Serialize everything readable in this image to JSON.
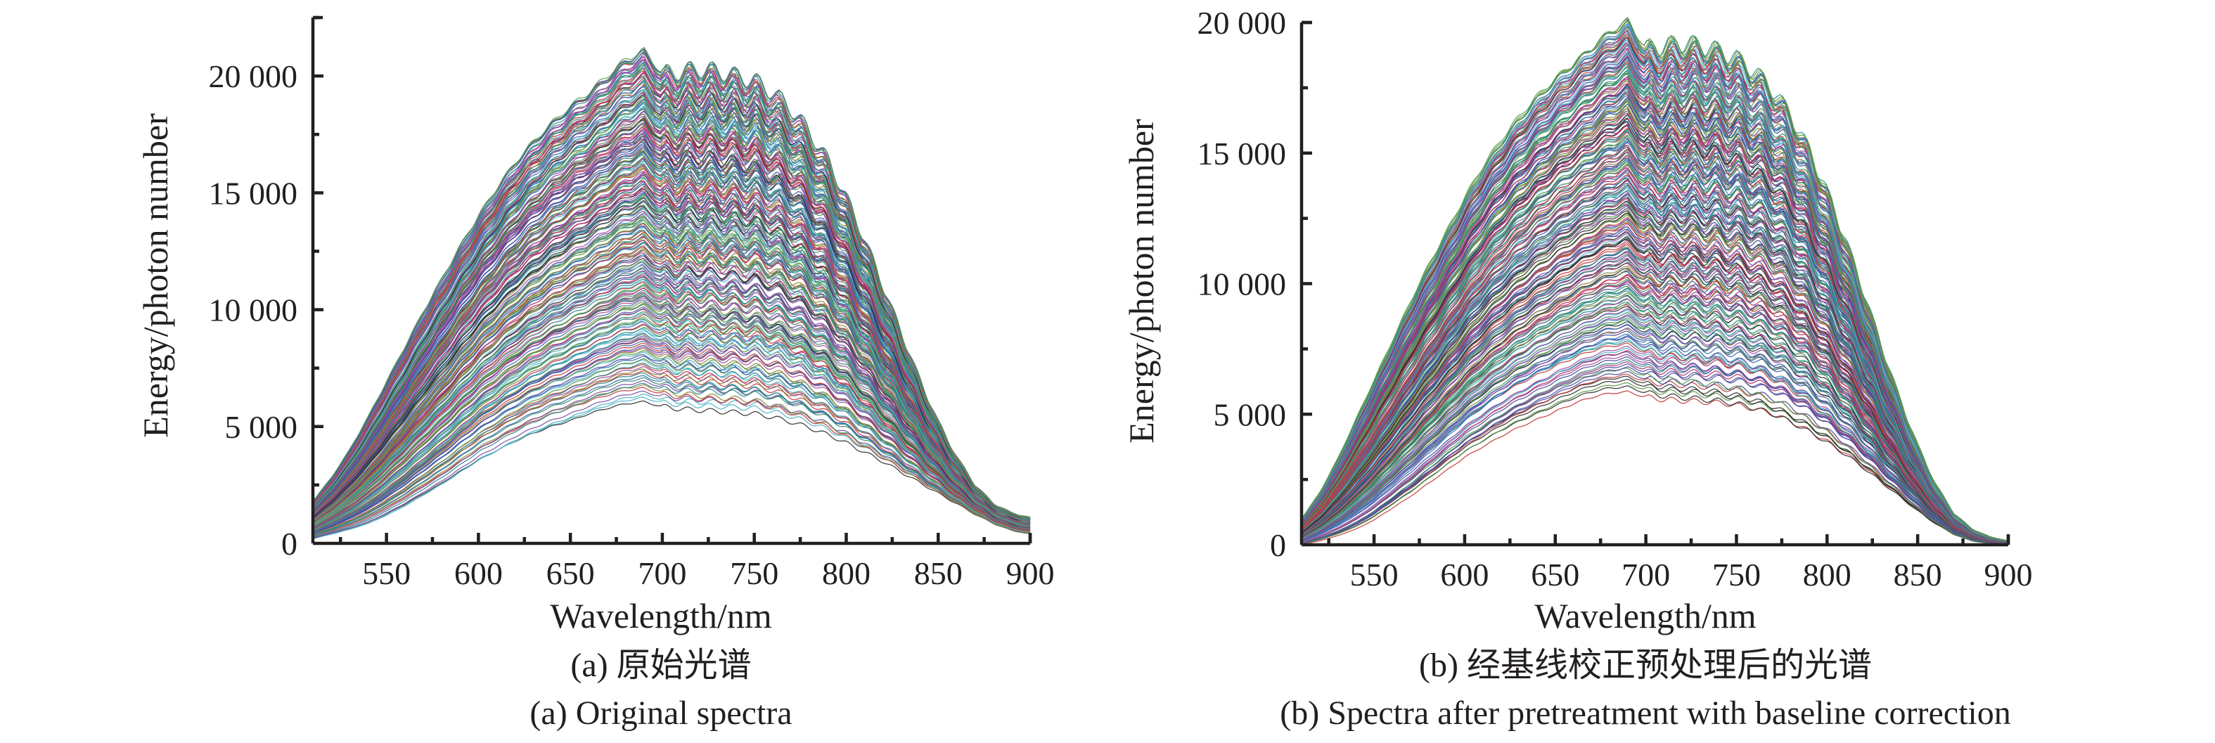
{
  "figure": {
    "panels": [
      {
        "id": "a",
        "caption_cn": "(a) 原始光谱",
        "caption_en": "(a) Original spectra"
      },
      {
        "id": "b",
        "caption_cn": "(b) 经基线校正预处理后的光谱",
        "caption_en": "(b) Spectra after pretreatment with baseline correction"
      }
    ]
  },
  "chart_data": [
    {
      "type": "line",
      "title": "(a) Original spectra",
      "title_cn": "(a) 原始光谱",
      "xlabel": "Wavelength/nm",
      "ylabel": "Energy/photon number",
      "xlim": [
        510,
        900
      ],
      "ylim": [
        0,
        22500
      ],
      "xticks": [
        550,
        600,
        650,
        700,
        750,
        800,
        850,
        900
      ],
      "xtick_labels": [
        "550",
        "600",
        "650",
        "700",
        "750",
        "800",
        "850",
        "900"
      ],
      "xminor_step": 25,
      "yticks": [
        0,
        5000,
        10000,
        15000,
        20000
      ],
      "ytick_labels": [
        "0",
        "5 000",
        "10 000",
        "15 000",
        "20 000"
      ],
      "yminor_step": 2500,
      "grid": false,
      "legend": "none",
      "series_count": 240,
      "ripple_amplitude_fraction": 0.012,
      "x": [
        510,
        520,
        530,
        540,
        550,
        560,
        570,
        580,
        590,
        600,
        610,
        620,
        630,
        640,
        650,
        660,
        670,
        680,
        690,
        700,
        710,
        720,
        730,
        740,
        750,
        760,
        770,
        780,
        790,
        800,
        810,
        820,
        830,
        840,
        850,
        860,
        870,
        880,
        890,
        900
      ],
      "envelope": {
        "upper": [
          1800,
          2800,
          4000,
          5400,
          6900,
          8400,
          9900,
          11300,
          12700,
          14000,
          15200,
          16300,
          17200,
          18000,
          18700,
          19300,
          20000,
          20700,
          21100,
          20100,
          20200,
          20300,
          20200,
          20000,
          19800,
          19300,
          18600,
          17600,
          16400,
          14800,
          13000,
          11000,
          9000,
          7000,
          5200,
          3700,
          2500,
          1700,
          1300,
          1100
        ],
        "lower": [
          200,
          400,
          600,
          850,
          1200,
          1600,
          2050,
          2500,
          3000,
          3500,
          3900,
          4300,
          4650,
          4950,
          5200,
          5500,
          5750,
          5950,
          6050,
          5850,
          5750,
          5700,
          5650,
          5600,
          5550,
          5400,
          5200,
          4950,
          4650,
          4300,
          3900,
          3500,
          3050,
          2600,
          2150,
          1700,
          1250,
          850,
          550,
          400
        ]
      },
      "colors": [
        "#4a4a9c",
        "#2b8b8b",
        "#b0306a",
        "#5a9a4a",
        "#7b4ea3",
        "#3a6fb5",
        "#c23b3b",
        "#2f2f2f",
        "#4fb3c4",
        "#8a8a3a",
        "#a04ca0",
        "#3c8c6c"
      ]
    },
    {
      "type": "line",
      "title": "(b) Spectra after pretreatment with baseline correction",
      "title_cn": "(b) 经基线校正预处理后的光谱",
      "xlabel": "Wavelength/nm",
      "ylabel": "Energy/photon number",
      "xlim": [
        510,
        900
      ],
      "ylim": [
        0,
        20000
      ],
      "xticks": [
        550,
        600,
        650,
        700,
        750,
        800,
        850,
        900
      ],
      "xtick_labels": [
        "550",
        "600",
        "650",
        "700",
        "750",
        "800",
        "850",
        "900"
      ],
      "xminor_step": 25,
      "yticks": [
        0,
        5000,
        10000,
        15000,
        20000
      ],
      "ytick_labels": [
        "0",
        "5 000",
        "10 000",
        "15 000",
        "20 000"
      ],
      "yminor_step": 2500,
      "grid": false,
      "legend": "none",
      "series_count": 240,
      "ripple_amplitude_fraction": 0.012,
      "x": [
        510,
        520,
        530,
        540,
        550,
        560,
        570,
        580,
        590,
        600,
        610,
        620,
        630,
        640,
        650,
        660,
        670,
        680,
        690,
        700,
        710,
        720,
        730,
        740,
        750,
        760,
        770,
        780,
        790,
        800,
        810,
        820,
        830,
        840,
        850,
        860,
        870,
        880,
        890,
        900
      ],
      "envelope": {
        "upper": [
          1000,
          2000,
          3300,
          4800,
          6300,
          7800,
          9300,
          10700,
          12000,
          13300,
          14500,
          15500,
          16400,
          17200,
          17900,
          18500,
          19100,
          19700,
          20100,
          19000,
          19100,
          19200,
          19100,
          18900,
          18600,
          18100,
          17400,
          16400,
          15100,
          13500,
          11700,
          9700,
          7600,
          5600,
          3800,
          2300,
          1200,
          600,
          300,
          150
        ],
        "lower": [
          0,
          150,
          350,
          600,
          950,
          1400,
          1850,
          2350,
          2850,
          3350,
          3750,
          4150,
          4500,
          4800,
          5100,
          5400,
          5650,
          5800,
          5860,
          5650,
          5550,
          5500,
          5450,
          5400,
          5300,
          5150,
          4950,
          4650,
          4300,
          3900,
          3450,
          2950,
          2400,
          1850,
          1300,
          800,
          400,
          150,
          50,
          0
        ]
      },
      "colors": [
        "#4a4a9c",
        "#2b8b8b",
        "#b0306a",
        "#5a9a4a",
        "#7b4ea3",
        "#3a6fb5",
        "#c23b3b",
        "#2f2f2f",
        "#4fb3c4",
        "#8a8a3a",
        "#a04ca0",
        "#3c8c6c"
      ]
    }
  ]
}
